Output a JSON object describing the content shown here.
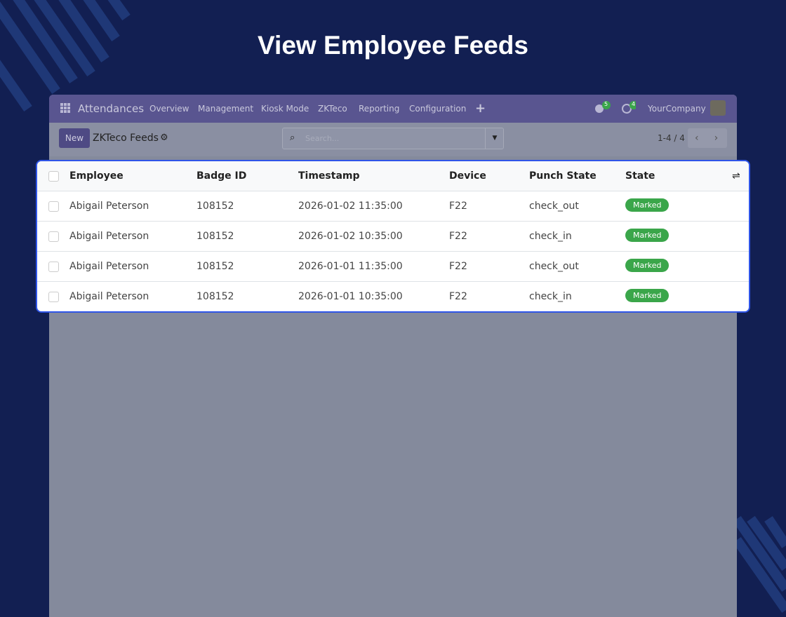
{
  "header": {
    "title": "View Employee Feeds"
  },
  "navbar": {
    "app": "Attendances",
    "menu": [
      "Overview",
      "Management",
      "Kiosk Mode",
      "ZKTeco",
      "Reporting",
      "Configuration"
    ],
    "messages_count": "5",
    "activities_count": "4",
    "company": "YourCompany"
  },
  "control_panel": {
    "new_button": "New",
    "breadcrumb": "ZKTeco Feeds",
    "search_placeholder": "Search...",
    "pager": "1-4 / 4"
  },
  "table": {
    "columns": [
      "Employee",
      "Badge ID",
      "Timestamp",
      "Device",
      "Punch State",
      "State"
    ],
    "rows": [
      [
        "Abigail Peterson",
        "108152",
        "2026-01-02 11:35:00",
        "F22",
        "check_out",
        "Marked"
      ],
      [
        "Abigail Peterson",
        "108152",
        "2026-01-02 10:35:00",
        "F22",
        "check_in",
        "Marked"
      ],
      [
        "Abigail Peterson",
        "108152",
        "2026-01-01 11:35:00",
        "F22",
        "check_out",
        "Marked"
      ],
      [
        "Abigail Peterson",
        "108152",
        "2026-01-01 10:35:00",
        "F22",
        "check_in",
        "Marked"
      ]
    ]
  }
}
